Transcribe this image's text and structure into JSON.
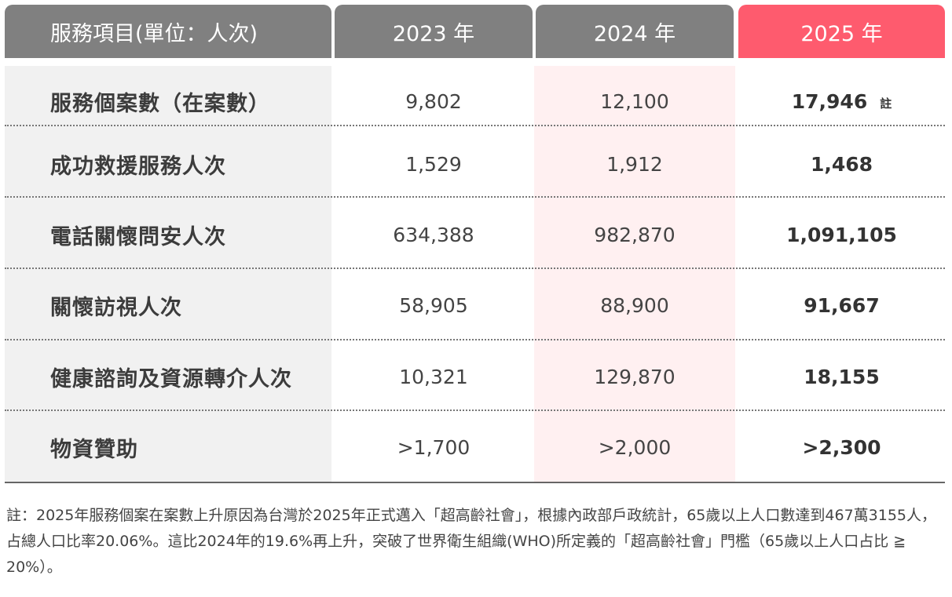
{
  "table": {
    "headers": [
      "服務項目(單位：人次)",
      "2023 年",
      "2024 年",
      "2025 年"
    ],
    "rows": [
      {
        "label": "服務個案數（在案數）",
        "v2023": "9,802",
        "v2024": "12,100",
        "v2025": "17,946",
        "note": "註"
      },
      {
        "label": "成功救援服務人次",
        "v2023": "1,529",
        "v2024": "1,912",
        "v2025": "1,468"
      },
      {
        "label": "電話關懷問安人次",
        "v2023": "634,388",
        "v2024": "982,870",
        "v2025": "1,091,105"
      },
      {
        "label": "關懷訪視人次",
        "v2023": "58,905",
        "v2024": "88,900",
        "v2025": "91,667"
      },
      {
        "label": "健康諮詢及資源轉介人次",
        "v2023": "10,321",
        "v2024": "129,870",
        "v2025": "18,155"
      },
      {
        "label": "物資贊助",
        "v2023": ">1,700",
        "v2024": ">2,000",
        "v2025": ">2,300"
      }
    ]
  },
  "footnote": "註：2025年服務個案在案數上升原因為台灣於2025年正式邁入「超高齡社會」，根據內政部戶政統計，65歲以上人口數達到467萬3155人，占總人口比率20.06%。這比2024年的19.6%再上升，突破了世界衛生組織(WHO)所定義的「超高齡社會」門檻（65歲以上人口占比 ≧ 20%）。",
  "colors": {
    "header_gray": "#808080",
    "header_highlight": "#fe5b6e",
    "label_column_bg": "#f1f1f1",
    "highlight_column_bg": "#fff0f1"
  }
}
